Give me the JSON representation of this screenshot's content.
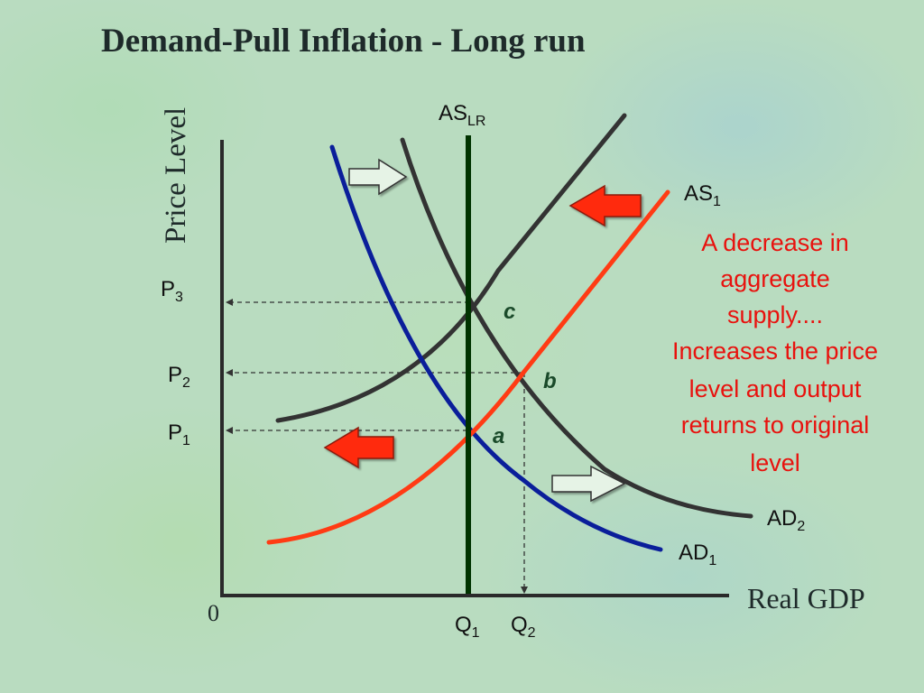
{
  "title": "Demand-Pull Inflation - Long run",
  "axes": {
    "y_label": "Price Level",
    "x_label": "Real GDP",
    "origin": "0"
  },
  "curves": {
    "as_lr": {
      "main": "AS",
      "sub": "LR",
      "color": "#003300"
    },
    "as_1": {
      "main": "AS",
      "sub": "1",
      "color": "#ff3b14"
    },
    "ad_1": {
      "main": "AD",
      "sub": "1",
      "color": "#0a1e9a"
    },
    "ad_2": {
      "main": "AD",
      "sub": "2",
      "color": "#333333"
    },
    "as_2": {
      "color": "#333333"
    }
  },
  "price_levels": [
    {
      "main": "P",
      "sub": "3"
    },
    {
      "main": "P",
      "sub": "2"
    },
    {
      "main": "P",
      "sub": "1"
    }
  ],
  "quantities": [
    {
      "main": "Q",
      "sub": "1"
    },
    {
      "main": "Q",
      "sub": "2"
    }
  ],
  "points": {
    "a": "a",
    "b": "b",
    "c": "c"
  },
  "note_lines": [
    "A decrease in",
    "aggregate",
    "supply....",
    "Increases the price",
    "level and output",
    "returns to original",
    "level"
  ],
  "arrows": {
    "shift_right_color": "#e6f3e6",
    "shift_left_color": "#ff2a0a"
  }
}
